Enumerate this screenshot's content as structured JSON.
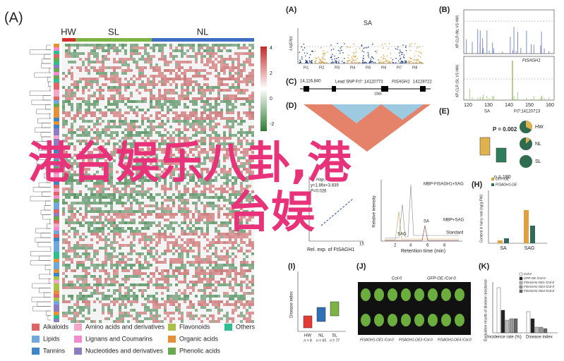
{
  "overlay": {
    "line1": "港台娱乐八卦,港",
    "line2": "台娱"
  },
  "panelA": {
    "label": "(A)",
    "groups": [
      "HW",
      "SL",
      "NL"
    ],
    "colorbar": [
      4,
      2,
      0,
      -2
    ],
    "legend": [
      "Alkaloids",
      "Amino acids and derivatives",
      "Flavonoids",
      "Others",
      "Lipids",
      "Lignans and Coumarins",
      "Organic acids",
      "Tannins",
      "Nucleotides and derivatives",
      "Phenolic acids"
    ]
  },
  "manhattan": {
    "label": "(A)",
    "title": "SA",
    "ylabel": "-Log10(p)",
    "chromosomes": [
      "Ft1",
      "Ft2",
      "Ft3",
      "Ft4",
      "Ft5",
      "Ft6",
      "Ft7",
      "Ft8"
    ]
  },
  "panelB": {
    "label": "(B)",
    "ylabel1": "XP-CLR (NL VS HW)",
    "ylabel2": "XP-CLR (SL VS HW)",
    "gene": "FtSAGH1",
    "xticks": [
      120,
      130,
      140,
      150,
      160
    ]
  },
  "panelC": {
    "label": "(C)",
    "start": "14,116,840",
    "snp": "Lead SNP Ft7: 14120773",
    "gene": "FtSAGH1",
    "end": "14128722",
    "scale": "10kb"
  },
  "panelD": {
    "label": "(D)"
  },
  "panelE": {
    "label": "(E)",
    "title": "SA",
    "snp": "Ft7:14120713",
    "p": "P = 0.002",
    "n": "n = 180",
    "pies": [
      "HW",
      "NL",
      "SL"
    ]
  },
  "panelF": {
    "legend": "Hap.A",
    "eq": "y=1.86x+3.839",
    "p": "P=0.026",
    "xlabel": "Rel. exp. of FtSAGH1",
    "xtick": 15
  },
  "panelG": {
    "ylabel": "Relative intensity",
    "xlabel": "Retention time (min)",
    "traces": [
      "MBP-FtSAGH1+SAG",
      "MBP+SAG",
      "Standard"
    ],
    "peaks": [
      "SAG",
      "SA"
    ],
    "xticks": [
      2,
      4,
      6,
      8
    ]
  },
  "panelH": {
    "label": "(H)",
    "legend": [
      "GFP-OE",
      "FtSAGH1-OE"
    ],
    "ylabel": "Content in hairy root (ng/g FW)",
    "groups": [
      "SA",
      "SAG"
    ]
  },
  "panelI": {
    "label": "(I)",
    "ylabel": "Disease index",
    "groups": [
      "HW",
      "NL",
      "SL"
    ],
    "ns": [
      "n = 8",
      "n = 65",
      "n = 77"
    ]
  },
  "panelJ": {
    "label": "(J)",
    "top": [
      "Col-0",
      "GFP-OE /Col-0"
    ],
    "bottom": [
      "FtSAGH1-OE1 /Col-0",
      "FtSAGH1-OE3 /Col-0",
      "FtSAGH1-OE4 /Col-0"
    ]
  },
  "panelK": {
    "label": "(K)",
    "legend": [
      "Col-0",
      "GFP-OE /Col-0",
      "FtSAGH1-OE1 /Col-0",
      "FtSAGH1-OE3 /Col-0",
      "FtSAGH1-OE4 /Col-0"
    ],
    "ylabel": "Evaluation results of disease resistance",
    "xlabels": [
      "Incidence rate (%)",
      "Disease index"
    ]
  }
}
